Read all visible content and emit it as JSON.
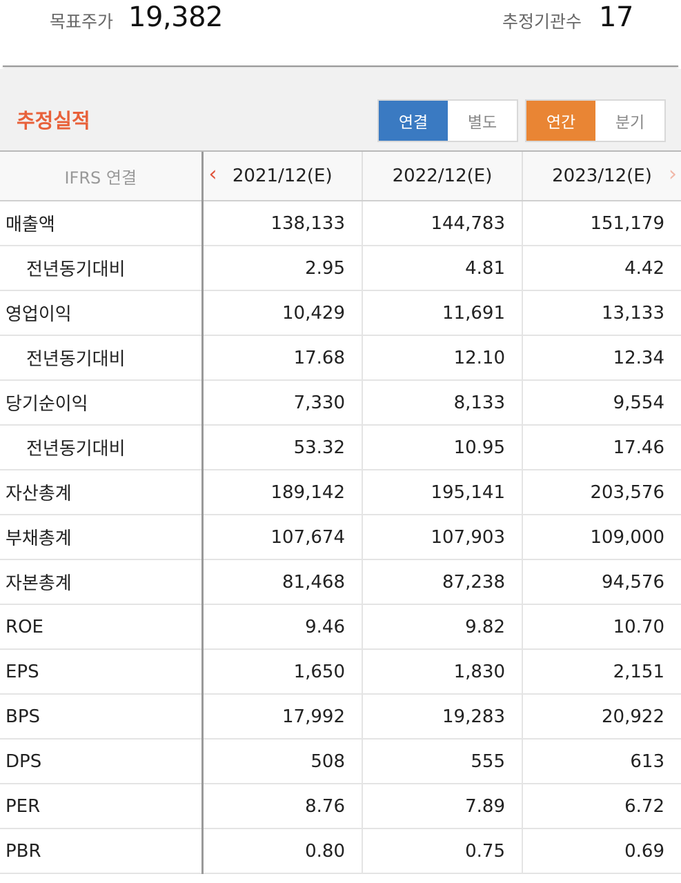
{
  "header": {
    "target_price_label": "목표주가",
    "target_price_value": "19,382",
    "institutions_label": "추정기관수",
    "institutions_value": "17"
  },
  "section": {
    "title": "추정실적",
    "toggle_consolidated": "연결",
    "toggle_separate": "별도",
    "toggle_annual": "연간",
    "toggle_quarterly": "분기"
  },
  "table": {
    "basis_label": "IFRS 연결",
    "years": [
      "2021/12(E)",
      "2022/12(E)",
      "2023/12(E)"
    ],
    "rows": [
      {
        "label": "매출액",
        "indent": false,
        "values": [
          "138,133",
          "144,783",
          "151,179"
        ]
      },
      {
        "label": "전년동기대비",
        "indent": true,
        "values": [
          "2.95",
          "4.81",
          "4.42"
        ]
      },
      {
        "label": "영업이익",
        "indent": false,
        "values": [
          "10,429",
          "11,691",
          "13,133"
        ]
      },
      {
        "label": "전년동기대비",
        "indent": true,
        "values": [
          "17.68",
          "12.10",
          "12.34"
        ]
      },
      {
        "label": "당기순이익",
        "indent": false,
        "values": [
          "7,330",
          "8,133",
          "9,554"
        ]
      },
      {
        "label": "전년동기대비",
        "indent": true,
        "values": [
          "53.32",
          "10.95",
          "17.46"
        ]
      },
      {
        "label": "자산총계",
        "indent": false,
        "values": [
          "189,142",
          "195,141",
          "203,576"
        ]
      },
      {
        "label": "부채총계",
        "indent": false,
        "values": [
          "107,674",
          "107,903",
          "109,000"
        ]
      },
      {
        "label": "자본총계",
        "indent": false,
        "values": [
          "81,468",
          "87,238",
          "94,576"
        ]
      },
      {
        "label": "ROE",
        "indent": false,
        "values": [
          "9.46",
          "9.82",
          "10.70"
        ]
      },
      {
        "label": "EPS",
        "indent": false,
        "values": [
          "1,650",
          "1,830",
          "2,151"
        ]
      },
      {
        "label": "BPS",
        "indent": false,
        "values": [
          "17,992",
          "19,283",
          "20,922"
        ]
      },
      {
        "label": "DPS",
        "indent": false,
        "values": [
          "508",
          "555",
          "613"
        ]
      },
      {
        "label": "PER",
        "indent": false,
        "values": [
          "8.76",
          "7.89",
          "6.72"
        ]
      },
      {
        "label": "PBR",
        "indent": false,
        "values": [
          "0.80",
          "0.75",
          "0.69"
        ]
      }
    ]
  },
  "icons": {
    "prev": "chevron-left-icon",
    "next": "chevron-right-icon"
  },
  "colors": {
    "accent_red": "#e8613a",
    "toggle_blue": "#3a7ac2",
    "toggle_orange": "#e98534"
  }
}
